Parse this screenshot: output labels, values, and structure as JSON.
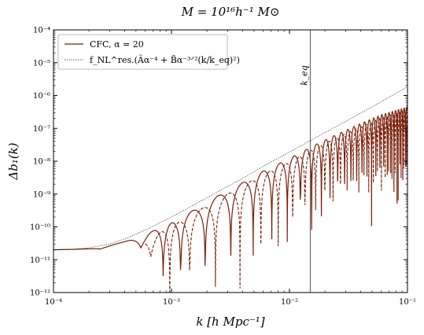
{
  "chart_data": {
    "type": "line",
    "title": "M = 10¹⁶h⁻¹ M⊙",
    "xlabel": "k  [h Mpc⁻¹]",
    "ylabel": "Δb₁(k)",
    "xscale": "log",
    "yscale": "log",
    "xlim": [
      0.0001,
      0.1
    ],
    "ylim": [
      1e-12,
      0.0001
    ],
    "x_ticks": [
      {
        "value": 0.0001,
        "label": "10⁻⁴"
      },
      {
        "value": 0.001,
        "label": "10⁻³"
      },
      {
        "value": 0.01,
        "label": "10⁻²"
      },
      {
        "value": 0.1,
        "label": "10⁻¹"
      }
    ],
    "y_ticks": [
      {
        "value": 1e-12,
        "label": "10⁻¹²"
      },
      {
        "value": 1e-11,
        "label": "10⁻¹¹"
      },
      {
        "value": 1e-10,
        "label": "10⁻¹⁰"
      },
      {
        "value": 1e-09,
        "label": "10⁻⁹"
      },
      {
        "value": 1e-08,
        "label": "10⁻⁸"
      },
      {
        "value": 1e-07,
        "label": "10⁻⁷"
      },
      {
        "value": 1e-06,
        "label": "10⁻⁶"
      },
      {
        "value": 1e-05,
        "label": "10⁻⁵"
      },
      {
        "value": 0.0001,
        "label": "10⁻⁴"
      }
    ],
    "grid": false,
    "legend_position": "top-left",
    "vline": {
      "x": 0.015,
      "label": "k_eq",
      "color": "#555555"
    },
    "series": [
      {
        "name": "CFC, α = 20",
        "style": "solid",
        "color": "#7a1f0a",
        "kind": "oscillating",
        "envelope_x": [
          0.0001,
          0.00015,
          0.00025,
          0.0004,
          0.0006,
          0.001,
          0.0016,
          0.0025,
          0.004,
          0.006,
          0.01,
          0.016,
          0.025,
          0.04,
          0.06,
          0.1
        ],
        "envelope_y": [
          2e-11,
          2.1e-11,
          2.5e-11,
          3.5e-11,
          6e-11,
          1.3e-10,
          3.5e-10,
          9e-10,
          2.2e-09,
          5e-09,
          1.2e-08,
          3e-08,
          6.5e-08,
          1.4e-07,
          2.6e-07,
          4.5e-07
        ],
        "period_x": [
          0.0001,
          0.001,
          0.01,
          0.1
        ],
        "period_y": [
          0.0003,
          0.0003,
          0.0027,
          0.005
        ],
        "phase": 0.0
      },
      {
        "name": "",
        "style": "dashed",
        "color": "#7a1f0a",
        "kind": "oscillating",
        "envelope_x": [
          0.0006,
          0.001,
          0.0016,
          0.0025,
          0.004,
          0.006,
          0.01,
          0.016,
          0.025,
          0.04,
          0.06,
          0.1
        ],
        "envelope_y": [
          4e-11,
          1e-10,
          2.8e-10,
          7e-10,
          1.8e-09,
          4e-09,
          9.5e-09,
          2.4e-08,
          5.2e-08,
          1.1e-07,
          2.1e-07,
          3.6e-07
        ],
        "period_x": [
          0.0001,
          0.001,
          0.01,
          0.1
        ],
        "period_y": [
          0.0003,
          0.0003,
          0.0027,
          0.005
        ],
        "phase": 0.55
      },
      {
        "name": "f_NL^res.(Ãα⁻⁴ + B̃α⁻³ᐟ²(k/k_eq)²)",
        "style": "dotted",
        "color": "#000000",
        "kind": "smooth",
        "x": [
          0.0001,
          0.00015,
          0.0002,
          0.0003,
          0.0004,
          0.0006,
          0.001,
          0.0016,
          0.0025,
          0.004,
          0.006,
          0.01,
          0.016,
          0.025,
          0.04,
          0.06,
          0.1
        ],
        "y": [
          2e-11,
          2.1e-11,
          2.3e-11,
          3e-11,
          4.3e-11,
          8e-11,
          2e-10,
          5e-10,
          1.2e-09,
          3e-09,
          7e-09,
          1.9e-08,
          4.8e-08,
          1.15e-07,
          2.9e-07,
          6.5e-07,
          1.85e-06
        ]
      }
    ]
  }
}
